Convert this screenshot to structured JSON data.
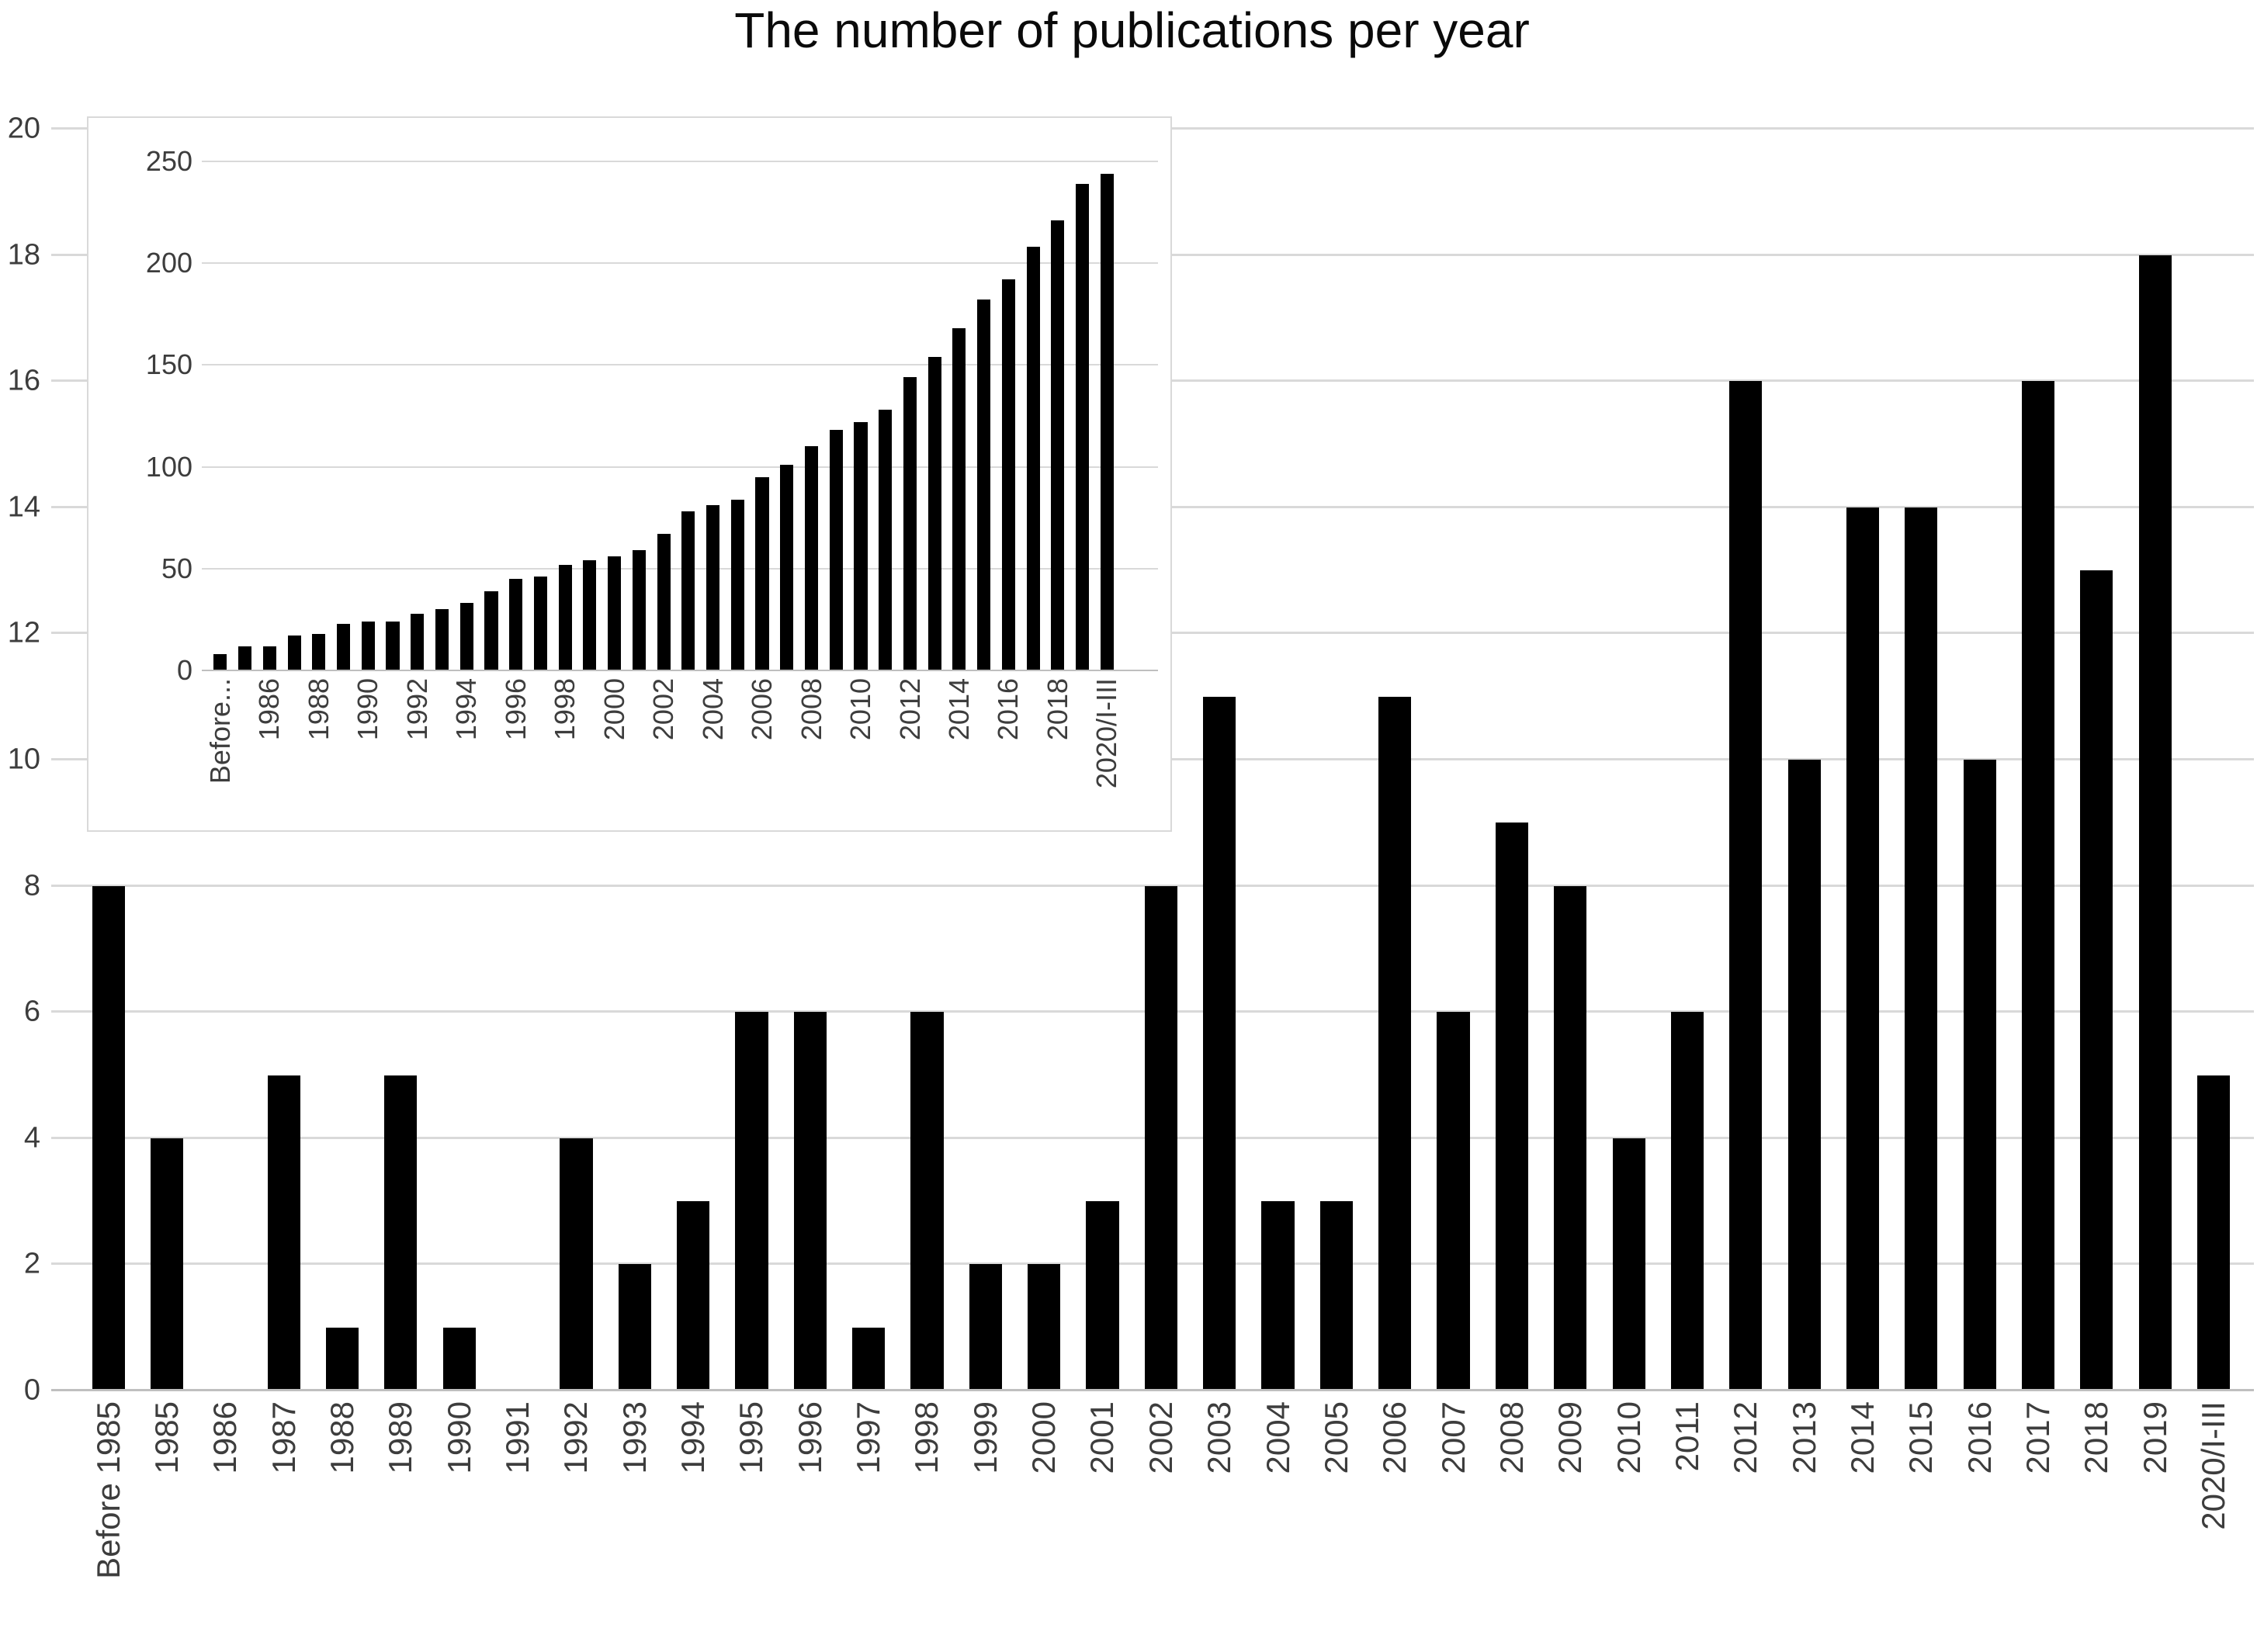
{
  "title": "The number of publications per year",
  "palette": {
    "bar": "#000000",
    "gridline": "#d9d9d9",
    "axis_line": "#bfbfbf",
    "label_text": "#3d3d3d",
    "title_text": "#0a0a0a",
    "background": "#ffffff",
    "inset_border": "#d9d9d9"
  },
  "chart_data": [
    {
      "type": "bar",
      "name": "publications-per-year",
      "title": "The number of publications per year",
      "categories": [
        "Before 1985",
        "1985",
        "1986",
        "1987",
        "1988",
        "1989",
        "1990",
        "1991",
        "1992",
        "1993",
        "1994",
        "1995",
        "1996",
        "1997",
        "1998",
        "1999",
        "2000",
        "2001",
        "2002",
        "2003",
        "2004",
        "2005",
        "2006",
        "2007",
        "2008",
        "2009",
        "2010",
        "2011",
        "2012",
        "2013",
        "2014",
        "2015",
        "2016",
        "2017",
        "2018",
        "2019",
        "2020/I-III"
      ],
      "values": [
        8,
        4,
        0,
        5,
        1,
        5,
        1,
        0,
        4,
        2,
        3,
        6,
        6,
        1,
        6,
        2,
        2,
        3,
        8,
        11,
        3,
        3,
        11,
        6,
        9,
        8,
        4,
        6,
        16,
        10,
        14,
        14,
        10,
        16,
        13,
        18,
        5
      ],
      "xtick_labels": [
        "Before 1985",
        "1985",
        "1986",
        "1987",
        "1988",
        "1989",
        "1990",
        "1991",
        "1992",
        "1993",
        "1994",
        "1995",
        "1996",
        "1997",
        "1998",
        "1999",
        "2000",
        "2001",
        "2002",
        "2003",
        "2004",
        "2005",
        "2006",
        "2007",
        "2008",
        "2009",
        "2010",
        "2011",
        "2012",
        "2013",
        "2014",
        "2015",
        "2016",
        "2017",
        "2018",
        "2019",
        "2020/I-III"
      ],
      "xlabel": "",
      "ylabel": "",
      "ylim": [
        0,
        20
      ],
      "yticks": [
        0,
        2,
        4,
        6,
        8,
        10,
        12,
        14,
        16,
        18,
        20
      ],
      "grid": true,
      "legend": "none",
      "bar_color": "#000000"
    },
    {
      "type": "bar",
      "name": "cumulative-publications-inset",
      "title": "",
      "categories": [
        "Before 1985",
        "1985",
        "1986",
        "1987",
        "1988",
        "1989",
        "1990",
        "1991",
        "1992",
        "1993",
        "1994",
        "1995",
        "1996",
        "1997",
        "1998",
        "1999",
        "2000",
        "2001",
        "2002",
        "2003",
        "2004",
        "2005",
        "2006",
        "2007",
        "2008",
        "2009",
        "2010",
        "2011",
        "2012",
        "2013",
        "2014",
        "2015",
        "2016",
        "2017",
        "2018",
        "2019",
        "2020/I-III"
      ],
      "values": [
        8,
        12,
        12,
        17,
        18,
        23,
        24,
        24,
        28,
        30,
        33,
        39,
        45,
        46,
        52,
        54,
        56,
        59,
        67,
        78,
        81,
        84,
        95,
        101,
        110,
        118,
        122,
        128,
        144,
        154,
        168,
        182,
        192,
        208,
        221,
        239,
        244
      ],
      "xtick_labels": [
        "Before...",
        "",
        "1986",
        "",
        "1988",
        "",
        "1990",
        "",
        "1992",
        "",
        "1994",
        "",
        "1996",
        "",
        "1998",
        "",
        "2000",
        "",
        "2002",
        "",
        "2004",
        "",
        "2006",
        "",
        "2008",
        "",
        "2010",
        "",
        "2012",
        "",
        "2014",
        "",
        "2016",
        "",
        "2018",
        "",
        "2020/I-III"
      ],
      "xlabel": "",
      "ylabel": "",
      "ylim": [
        0,
        250
      ],
      "yticks": [
        0,
        50,
        100,
        150,
        200,
        250
      ],
      "grid": true,
      "legend": "none",
      "bar_color": "#000000"
    }
  ]
}
